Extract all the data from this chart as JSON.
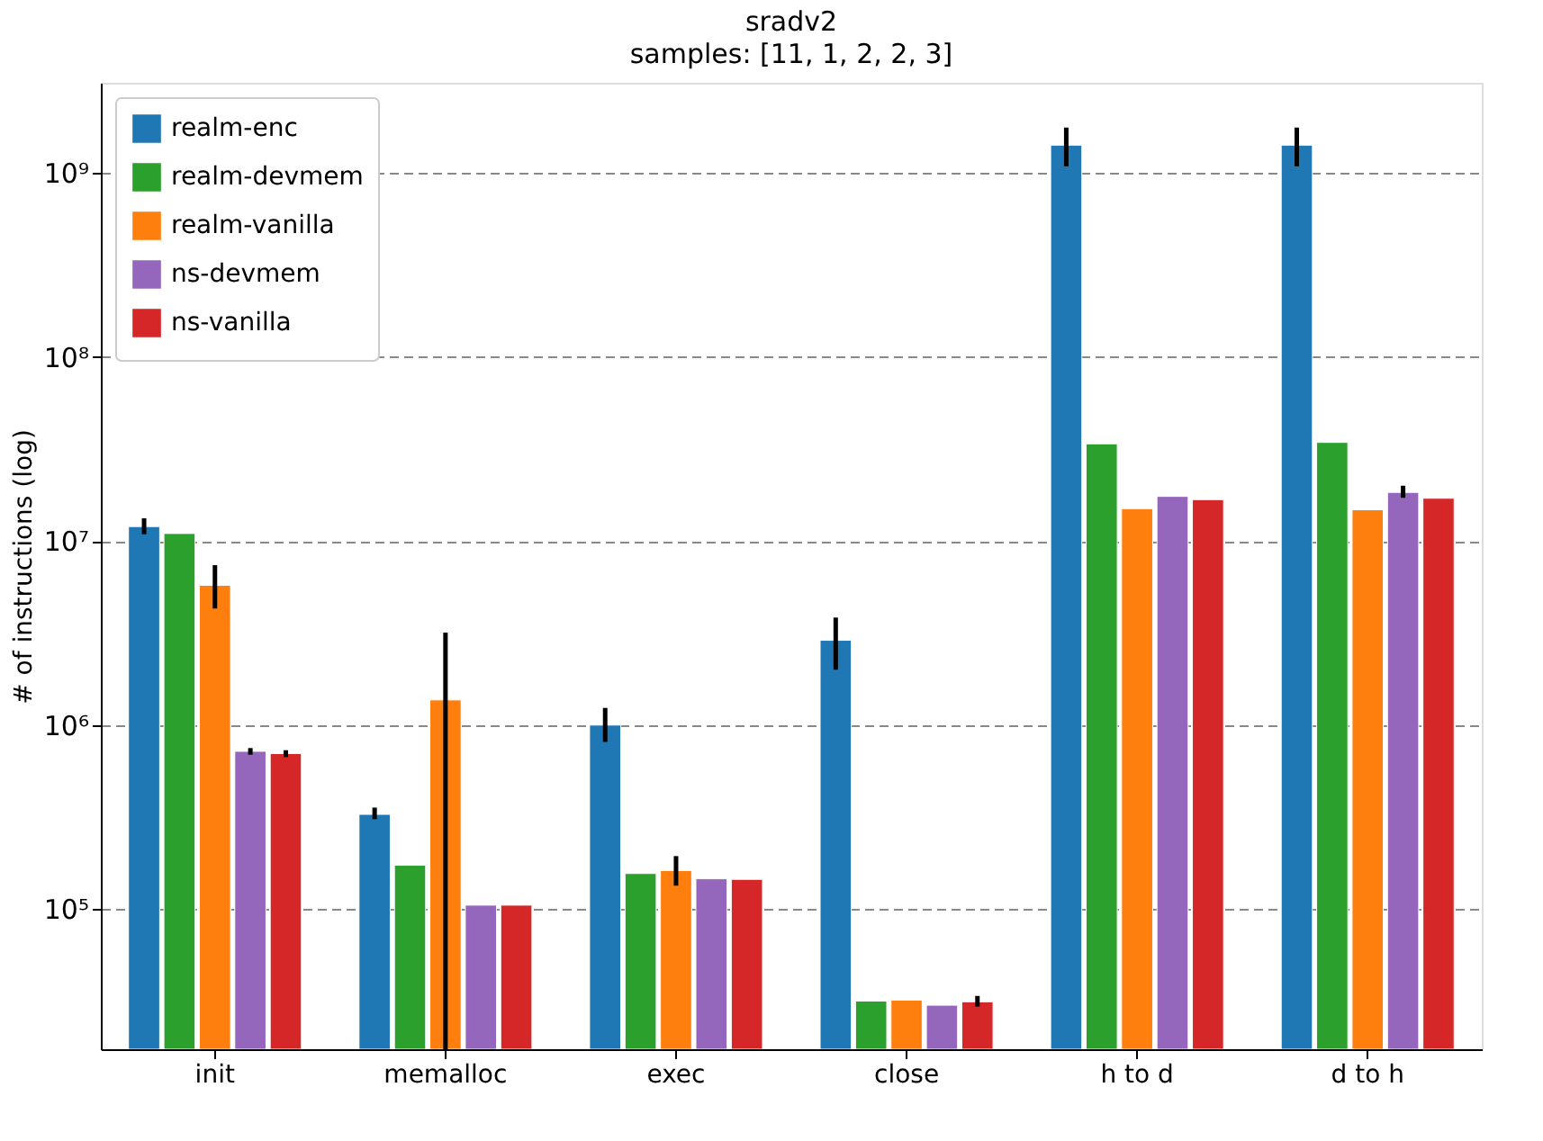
{
  "chart_data": {
    "type": "bar",
    "title": "sradv2",
    "subtitle": "samples: [11, 1, 2, 2, 3]",
    "ylabel": "# of instructions (log)",
    "categories": [
      "init",
      "memalloc",
      "exec",
      "close",
      "h to d",
      "d to h"
    ],
    "series": [
      {
        "name": "realm-enc",
        "color": "#1f77b4",
        "values": [
          12000000,
          327000,
          1000000,
          2890000,
          1420000000,
          1420000000
        ],
        "errors": [
          [
            10900000,
            13300000
          ],
          [
            308000,
            356000
          ],
          [
            810000,
            1240000
          ],
          [
            2000000,
            3840000
          ],
          [
            1090000000,
            1770000000
          ],
          [
            1090000000,
            1770000000
          ]
        ]
      },
      {
        "name": "realm-devmem",
        "color": "#2ca02c",
        "values": [
          11000000,
          173000,
          156000,
          31600,
          33800000,
          34400000
        ],
        "errors": [
          null,
          null,
          null,
          null,
          null,
          null
        ]
      },
      {
        "name": "realm-vanilla",
        "color": "#ff7f0e",
        "values": [
          5750000,
          1370000,
          162000,
          32000,
          15000000,
          14800000
        ],
        "errors": [
          [
            4300000,
            7400000
          ],
          [
            17300,
            3180000
          ],
          [
            134000,
            194000
          ],
          null,
          null,
          null
        ]
      },
      {
        "name": "ns-devmem",
        "color": "#9467bd",
        "values": [
          720000,
          105000,
          146000,
          30000,
          17500000,
          18400000
        ],
        "errors": [
          [
            690000,
            750000
          ],
          null,
          null,
          null,
          null,
          [
            17200000,
            20000000
          ]
        ]
      },
      {
        "name": "ns-vanilla",
        "color": "#d62728",
        "values": [
          700000,
          105000,
          145000,
          31300,
          16800000,
          17100000
        ],
        "errors": [
          [
            670000,
            730000
          ],
          null,
          null,
          [
            29500,
            33700
          ],
          null,
          null
        ]
      }
    ],
    "log": true,
    "ylim": [
      17300,
      3100000000
    ],
    "yticks": [
      {
        "value": 100000,
        "label": "10⁵"
      },
      {
        "value": 1000000,
        "label": "10⁶"
      },
      {
        "value": 10000000,
        "label": "10⁷"
      },
      {
        "value": 100000000,
        "label": "10⁸"
      },
      {
        "value": 1000000000,
        "label": "10⁹"
      }
    ],
    "grid": "y",
    "legend": "top left"
  }
}
